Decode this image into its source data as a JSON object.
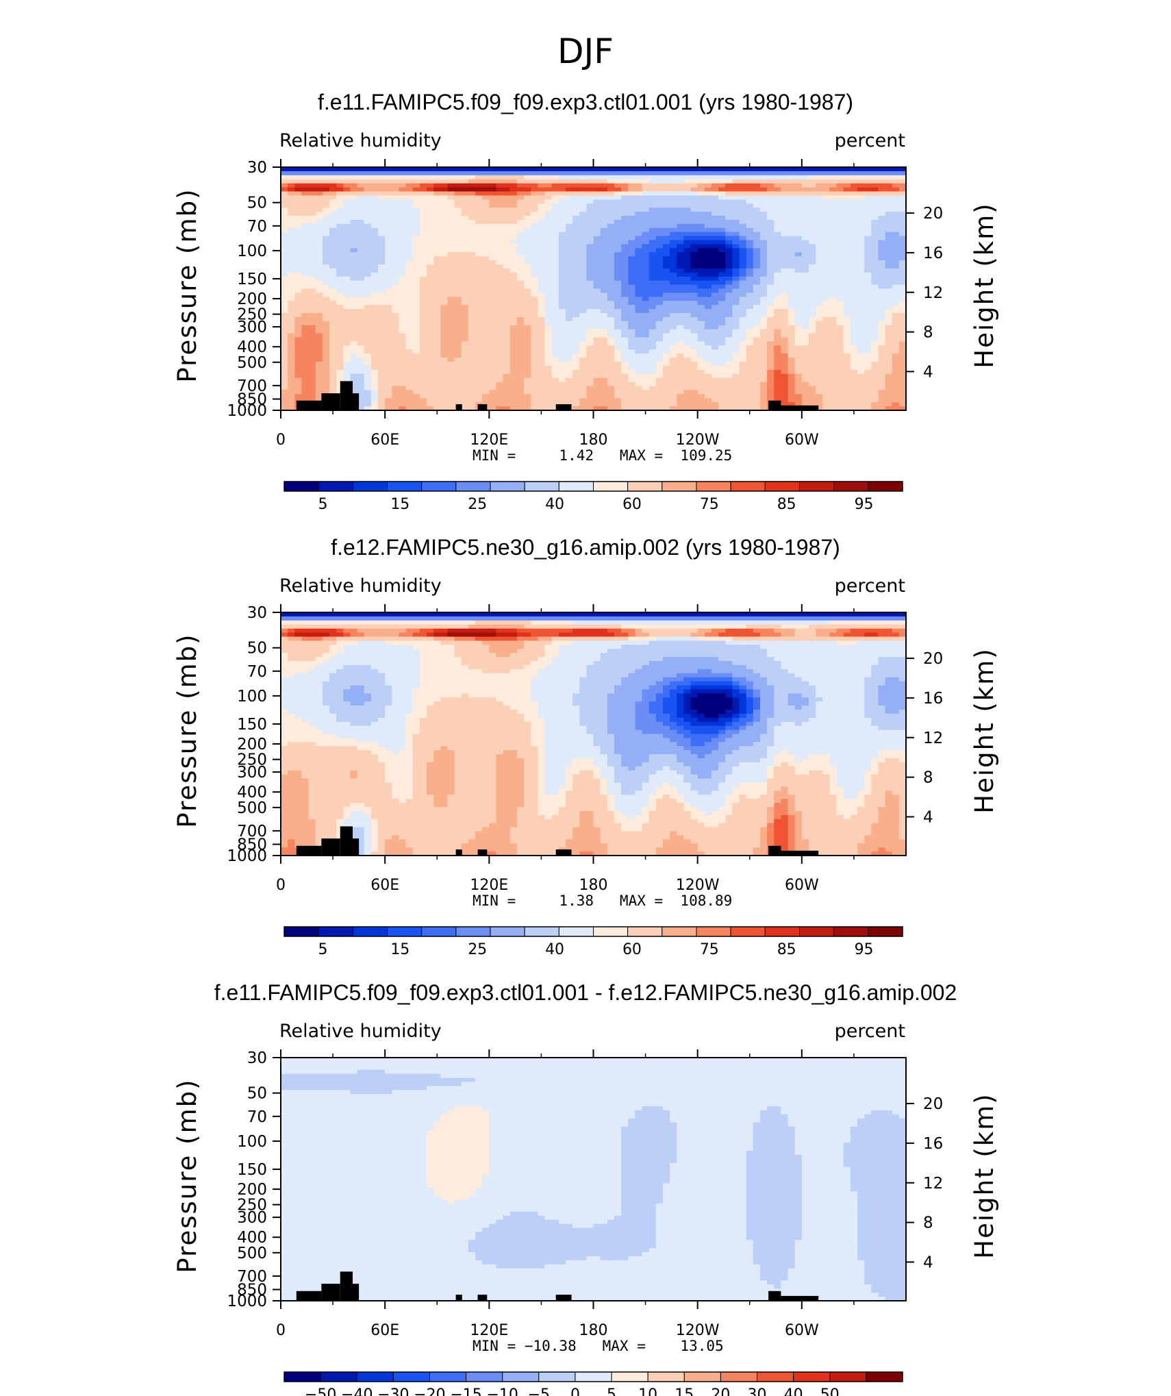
{
  "suptitle": "DJF",
  "colors": {
    "abs_scale": [
      "#00007f",
      "#0019b3",
      "#0035d9",
      "#1953f2",
      "#3d6ef7",
      "#6a8ef5",
      "#94aff5",
      "#bcd0f7",
      "#dfeafb",
      "#fdebdb",
      "#fcd0b6",
      "#f9ae8c",
      "#f5845f",
      "#ef5532",
      "#e0321c",
      "#c31d12",
      "#9e0e0b",
      "#7c0000"
    ],
    "diff_scale": [
      "#00007f",
      "#0019b3",
      "#0035d9",
      "#1953f2",
      "#3d6ef7",
      "#6a8ef5",
      "#94aff5",
      "#bcd0f7",
      "#dfeafb",
      "#fdebdb",
      "#fcd0b6",
      "#f9ae8c",
      "#f5845f",
      "#ef5532",
      "#e0321c",
      "#c31d12",
      "#7c0000"
    ],
    "land": "#000000"
  },
  "chart_data": [
    {
      "type": "heatmap",
      "title": "f.e11.FAMIPC5.f09_f09.exp3.ctl01.001 (yrs 1980-1987)",
      "left_label": "Relative humidity",
      "right_label": "percent",
      "ylabel": "Pressure (mb)",
      "ylabel_right": "Height (km)",
      "x_ticks": [
        "0",
        "60E",
        "120E",
        "180",
        "120W",
        "60W"
      ],
      "y_ticks": [
        "30",
        "50",
        "70",
        "100",
        "150",
        "200",
        "250",
        "300",
        "400",
        "500",
        "700",
        "850",
        "1000"
      ],
      "y_ticks_right": [
        "20",
        "16",
        "12",
        "8",
        "4"
      ],
      "stats": "MIN =     1.42   MAX =  109.25",
      "min": 1.42,
      "max": 109.25,
      "colorbar_ticks": [
        "5",
        "15",
        "25",
        "40",
        "60",
        "75",
        "85",
        "95"
      ],
      "xlim": [
        0,
        360
      ],
      "ylim": [
        1000,
        30
      ]
    },
    {
      "type": "heatmap",
      "title": "f.e12.FAMIPC5.ne30_g16.amip.002 (yrs 1980-1987)",
      "left_label": "Relative humidity",
      "right_label": "percent",
      "ylabel": "Pressure (mb)",
      "ylabel_right": "Height (km)",
      "x_ticks": [
        "0",
        "60E",
        "120E",
        "180",
        "120W",
        "60W"
      ],
      "y_ticks": [
        "30",
        "50",
        "70",
        "100",
        "150",
        "200",
        "250",
        "300",
        "400",
        "500",
        "700",
        "850",
        "1000"
      ],
      "y_ticks_right": [
        "20",
        "16",
        "12",
        "8",
        "4"
      ],
      "stats": "MIN =     1.38   MAX =  108.89",
      "min": 1.38,
      "max": 108.89,
      "colorbar_ticks": [
        "5",
        "15",
        "25",
        "40",
        "60",
        "75",
        "85",
        "95"
      ],
      "xlim": [
        0,
        360
      ],
      "ylim": [
        1000,
        30
      ]
    },
    {
      "type": "heatmap",
      "title": "f.e11.FAMIPC5.f09_f09.exp3.ctl01.001 - f.e12.FAMIPC5.ne30_g16.amip.002",
      "left_label": "Relative humidity",
      "right_label": "percent",
      "ylabel": "Pressure (mb)",
      "ylabel_right": "Height (km)",
      "x_ticks": [
        "0",
        "60E",
        "120E",
        "180",
        "120W",
        "60W"
      ],
      "y_ticks": [
        "30",
        "50",
        "70",
        "100",
        "150",
        "200",
        "250",
        "300",
        "400",
        "500",
        "700",
        "850",
        "1000"
      ],
      "y_ticks_right": [
        "20",
        "16",
        "12",
        "8",
        "4"
      ],
      "stats": "MIN = −10.38   MAX =    13.05",
      "min": -10.38,
      "max": 13.05,
      "colorbar_ticks": [
        "−50",
        "−40",
        "−30",
        "−20",
        "−15",
        "−10",
        "−5",
        "0",
        "5",
        "10",
        "15",
        "20",
        "30",
        "40",
        "50"
      ],
      "xlim": [
        0,
        360
      ],
      "ylim": [
        1000,
        30
      ]
    }
  ]
}
